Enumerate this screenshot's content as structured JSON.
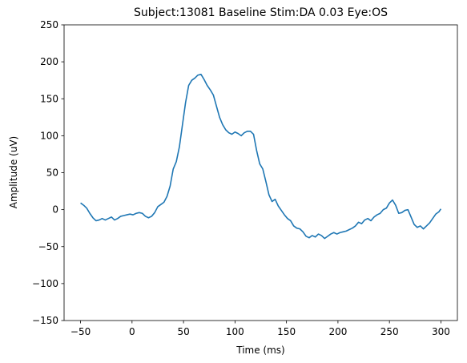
{
  "chart_data": {
    "type": "line",
    "title": "Subject:13081 Baseline Stim:DA 0.03 Eye:OS",
    "xlabel": "Time (ms)",
    "ylabel": "Amplitude (uV)",
    "xlim": [
      -66,
      316
    ],
    "ylim": [
      -150,
      250
    ],
    "xticks": [
      -50,
      0,
      50,
      100,
      150,
      200,
      250,
      300
    ],
    "yticks": [
      -150,
      -100,
      -50,
      0,
      50,
      100,
      150,
      200,
      250
    ],
    "grid": false,
    "line_color": "#1f77b4",
    "x": [
      -50,
      -47,
      -44,
      -41,
      -38,
      -35,
      -32,
      -29,
      -26,
      -23,
      -20,
      -17,
      -14,
      -11,
      -8,
      -5,
      -2,
      1,
      4,
      7,
      10,
      13,
      16,
      19,
      22,
      25,
      28,
      31,
      34,
      37,
      40,
      43,
      46,
      49,
      52,
      55,
      58,
      61,
      64,
      67,
      70,
      73,
      76,
      79,
      82,
      85,
      88,
      91,
      94,
      97,
      100,
      103,
      106,
      109,
      112,
      115,
      118,
      121,
      124,
      127,
      130,
      133,
      136,
      139,
      142,
      145,
      148,
      151,
      154,
      157,
      160,
      163,
      166,
      169,
      172,
      175,
      178,
      181,
      184,
      187,
      190,
      193,
      196,
      199,
      202,
      205,
      208,
      211,
      214,
      217,
      220,
      223,
      226,
      229,
      232,
      235,
      238,
      241,
      244,
      247,
      250,
      253,
      256,
      259,
      262,
      265,
      268,
      271,
      274,
      277,
      280,
      283,
      286,
      289,
      292,
      295,
      298,
      300
    ],
    "y": [
      9,
      6,
      2,
      -5,
      -11,
      -15,
      -14,
      -12,
      -14,
      -12,
      -10,
      -14,
      -12,
      -9,
      -8,
      -7,
      -6,
      -7,
      -5,
      -4,
      -5,
      -9,
      -11,
      -9,
      -4,
      4,
      7,
      10,
      18,
      32,
      55,
      65,
      85,
      115,
      145,
      168,
      175,
      178,
      182,
      183,
      176,
      168,
      162,
      155,
      140,
      125,
      115,
      108,
      104,
      102,
      105,
      103,
      100,
      104,
      106,
      106,
      102,
      80,
      62,
      55,
      38,
      20,
      11,
      14,
      5,
      -1,
      -7,
      -12,
      -15,
      -22,
      -25,
      -26,
      -30,
      -36,
      -38,
      -35,
      -37,
      -33,
      -35,
      -39,
      -36,
      -33,
      -31,
      -33,
      -31,
      -30,
      -29,
      -27,
      -25,
      -22,
      -17,
      -19,
      -14,
      -12,
      -15,
      -10,
      -7,
      -5,
      0,
      2,
      9,
      13,
      6,
      -5,
      -4,
      -1,
      0,
      -10,
      -20,
      -24,
      -22,
      -26,
      -22,
      -18,
      -12,
      -6,
      -3,
      1
    ]
  }
}
